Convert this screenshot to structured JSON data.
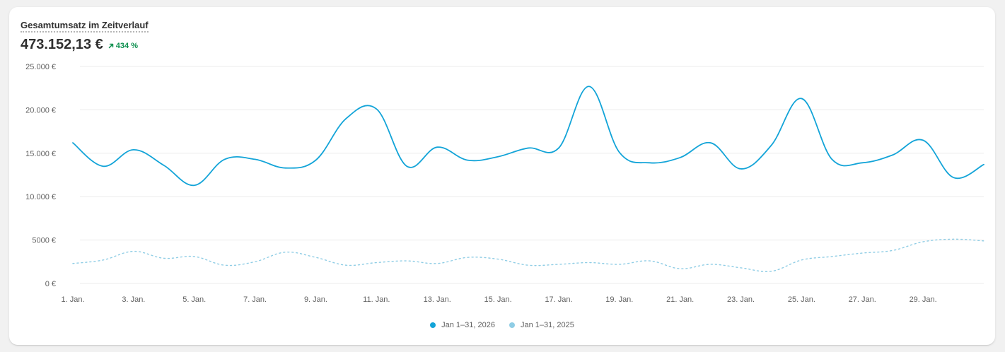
{
  "card": {
    "title": "Gesamtumsatz im Zeitverlauf",
    "total": "473.152,13 €",
    "change": "434 %",
    "change_color": "#0c8f4e"
  },
  "chart_data": {
    "type": "line",
    "ylim": [
      0,
      25000
    ],
    "grid": true,
    "legend_position": "bottom-center",
    "y_ticks": [
      {
        "value": 0,
        "label": "0 €"
      },
      {
        "value": 5000,
        "label": "5000 €"
      },
      {
        "value": 10000,
        "label": "10.000 €"
      },
      {
        "value": 15000,
        "label": "15.000 €"
      },
      {
        "value": 20000,
        "label": "20.000 €"
      },
      {
        "value": 25000,
        "label": "25.000 €"
      }
    ],
    "x": [
      "1. Jan.",
      "2. Jan.",
      "3. Jan.",
      "4. Jan.",
      "5. Jan.",
      "6. Jan.",
      "7. Jan.",
      "8. Jan.",
      "9. Jan.",
      "10. Jan.",
      "11. Jan.",
      "12. Jan.",
      "13. Jan.",
      "14. Jan.",
      "15. Jan.",
      "16. Jan.",
      "17. Jan.",
      "18. Jan.",
      "19. Jan.",
      "20. Jan.",
      "21. Jan.",
      "22. Jan.",
      "23. Jan.",
      "24. Jan.",
      "25. Jan.",
      "26. Jan.",
      "27. Jan.",
      "28. Jan.",
      "29. Jan.",
      "30. Jan.",
      "31. Jan."
    ],
    "x_tick_labels": [
      "1. Jan.",
      "3. Jan.",
      "5. Jan.",
      "7. Jan.",
      "9. Jan.",
      "11. Jan.",
      "13. Jan.",
      "15. Jan.",
      "17. Jan.",
      "19. Jan.",
      "21. Jan.",
      "23. Jan.",
      "25. Jan.",
      "27. Jan.",
      "29. Jan."
    ],
    "series": [
      {
        "name": "Jan 1–31, 2026",
        "color": "#13a4d8",
        "style": "solid",
        "values": [
          16200,
          13500,
          15400,
          13600,
          11300,
          14300,
          14300,
          13300,
          14200,
          19000,
          20100,
          13500,
          15700,
          14200,
          14600,
          15600,
          15600,
          22700,
          15100,
          13900,
          14500,
          16200,
          13200,
          15900,
          21300,
          14300,
          13900,
          14800,
          16500,
          12200,
          13700
        ]
      },
      {
        "name": "Jan 1–31, 2025",
        "color": "#8fcde5",
        "style": "dotted",
        "values": [
          2300,
          2700,
          3700,
          2900,
          3100,
          2100,
          2500,
          3600,
          3000,
          2100,
          2400,
          2600,
          2300,
          3000,
          2800,
          2100,
          2200,
          2400,
          2200,
          2600,
          1700,
          2200,
          1800,
          1400,
          2700,
          3100,
          3500,
          3800,
          4800,
          5100,
          4900
        ]
      }
    ]
  }
}
